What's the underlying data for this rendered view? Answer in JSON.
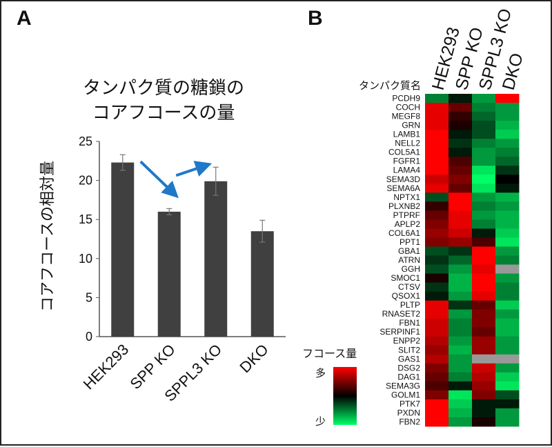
{
  "panels": {
    "a": "A",
    "b": "B"
  },
  "chart_data": [
    {
      "type": "bar",
      "title_line1": "タンパク質の糖鎖の",
      "title_line2": "コアフコースの量",
      "ylabel": "コアフコースの相対量",
      "xlabel": "",
      "categories": [
        "HEK293",
        "SPP KO",
        "SPPL3 KO",
        "DKO"
      ],
      "values": [
        22.3,
        16.0,
        19.9,
        13.5
      ],
      "errors": [
        1.0,
        0.4,
        1.8,
        1.4
      ],
      "ylim": [
        0,
        25
      ],
      "yticks": [
        0,
        5,
        10,
        15,
        20,
        25
      ],
      "bar_color": "#404040",
      "arrow_color": "#1f78c8",
      "annotations": [
        {
          "type": "arrow",
          "from": "HEK293",
          "to": "SPP KO"
        },
        {
          "type": "arrow",
          "from": "SPP KO",
          "to": "SPPL3 KO"
        }
      ]
    },
    {
      "type": "heatmap",
      "columns": [
        "HEK293",
        "SPP KO",
        "SPPL3 KO",
        "DKO"
      ],
      "row_header": "タンパク質名",
      "legend_title": "フコース量",
      "legend_high": "多",
      "legend_low": "少",
      "scale": {
        "min": -1,
        "max": 1,
        "high_color": "#ff0000",
        "mid_color": "#000000",
        "low_color": "#00ff66",
        "missing_color": "#999999"
      },
      "rows": [
        {
          "name": "PCDH9",
          "values": [
            -0.5,
            -0.1,
            -0.6,
            1.0
          ]
        },
        {
          "name": "COCH",
          "values": [
            0.9,
            0.4,
            -0.5,
            -0.6
          ]
        },
        {
          "name": "MEGF8",
          "values": [
            0.9,
            0.2,
            -0.4,
            -0.6
          ]
        },
        {
          "name": "GRN",
          "values": [
            0.9,
            0.1,
            -0.3,
            -0.7
          ]
        },
        {
          "name": "LAMB1",
          "values": [
            1.0,
            -0.1,
            -0.3,
            -0.8
          ]
        },
        {
          "name": "NELL2",
          "values": [
            1.0,
            -0.2,
            -0.5,
            -0.6
          ]
        },
        {
          "name": "COL5A1",
          "values": [
            1.0,
            -0.1,
            -0.6,
            -0.5
          ]
        },
        {
          "name": "FGFR1",
          "values": [
            1.0,
            0.3,
            -0.6,
            -0.4
          ]
        },
        {
          "name": "LAMA4",
          "values": [
            1.0,
            0.4,
            -0.9,
            -0.2
          ]
        },
        {
          "name": "SEMA3D",
          "values": [
            0.8,
            0.5,
            -1.0,
            0.0
          ]
        },
        {
          "name": "SEMA6A",
          "values": [
            0.9,
            0.4,
            -0.9,
            -0.1
          ]
        },
        {
          "name": "NPTX1",
          "values": [
            -0.3,
            1.0,
            -0.6,
            -0.7
          ]
        },
        {
          "name": "PLXNB2",
          "values": [
            0.2,
            1.0,
            -0.5,
            -0.6
          ]
        },
        {
          "name": "PTPRF",
          "values": [
            0.4,
            0.9,
            -0.6,
            -0.7
          ]
        },
        {
          "name": "APLP2",
          "values": [
            0.5,
            0.9,
            -0.5,
            -0.7
          ]
        },
        {
          "name": "COL6A1",
          "values": [
            0.6,
            0.8,
            -0.1,
            -0.8
          ]
        },
        {
          "name": "PPT1",
          "values": [
            0.5,
            0.6,
            0.3,
            -0.9
          ]
        },
        {
          "name": "GBA1",
          "values": [
            -0.3,
            -0.2,
            1.0,
            -0.6
          ]
        },
        {
          "name": "ATRN",
          "values": [
            -0.2,
            -0.4,
            1.0,
            -0.5
          ]
        },
        {
          "name": "GGH",
          "values": [
            -0.3,
            -0.6,
            0.9,
            null
          ]
        },
        {
          "name": "SMOC1",
          "values": [
            0.1,
            -0.7,
            1.0,
            -0.6
          ]
        },
        {
          "name": "CTSV",
          "values": [
            -0.2,
            -0.7,
            1.0,
            -0.5
          ]
        },
        {
          "name": "QSOX1",
          "values": [
            -0.1,
            -0.6,
            0.9,
            -0.5
          ]
        },
        {
          "name": "PLTP",
          "values": [
            0.9,
            -0.2,
            0.4,
            -0.8
          ]
        },
        {
          "name": "RNASET2",
          "values": [
            0.9,
            -0.6,
            0.5,
            -0.6
          ]
        },
        {
          "name": "FBN1",
          "values": [
            0.8,
            -0.5,
            0.5,
            -0.7
          ]
        },
        {
          "name": "SERPINF1",
          "values": [
            0.8,
            -0.5,
            0.4,
            -0.7
          ]
        },
        {
          "name": "ENPP2",
          "values": [
            0.7,
            -0.6,
            0.6,
            -0.6
          ]
        },
        {
          "name": "SLIT2",
          "values": [
            0.6,
            -0.7,
            0.6,
            -0.6
          ]
        },
        {
          "name": "GAS1",
          "values": [
            0.7,
            -0.6,
            null,
            null
          ]
        },
        {
          "name": "DSG2",
          "values": [
            0.5,
            -0.6,
            0.8,
            -0.6
          ]
        },
        {
          "name": "DAG1",
          "values": [
            0.4,
            -0.5,
            0.7,
            -0.8
          ]
        },
        {
          "name": "SEMA3G",
          "values": [
            0.3,
            -0.1,
            0.6,
            -0.9
          ]
        },
        {
          "name": "GOLM1",
          "values": [
            0.5,
            -0.9,
            0.5,
            -0.3
          ]
        },
        {
          "name": "PTK7",
          "values": [
            1.0,
            -0.8,
            -0.1,
            -0.1
          ]
        },
        {
          "name": "PXDN",
          "values": [
            1.0,
            -0.7,
            -0.1,
            -0.6
          ]
        },
        {
          "name": "FBN2",
          "values": [
            1.0,
            -0.6,
            0.1,
            -0.6
          ]
        }
      ]
    }
  ]
}
